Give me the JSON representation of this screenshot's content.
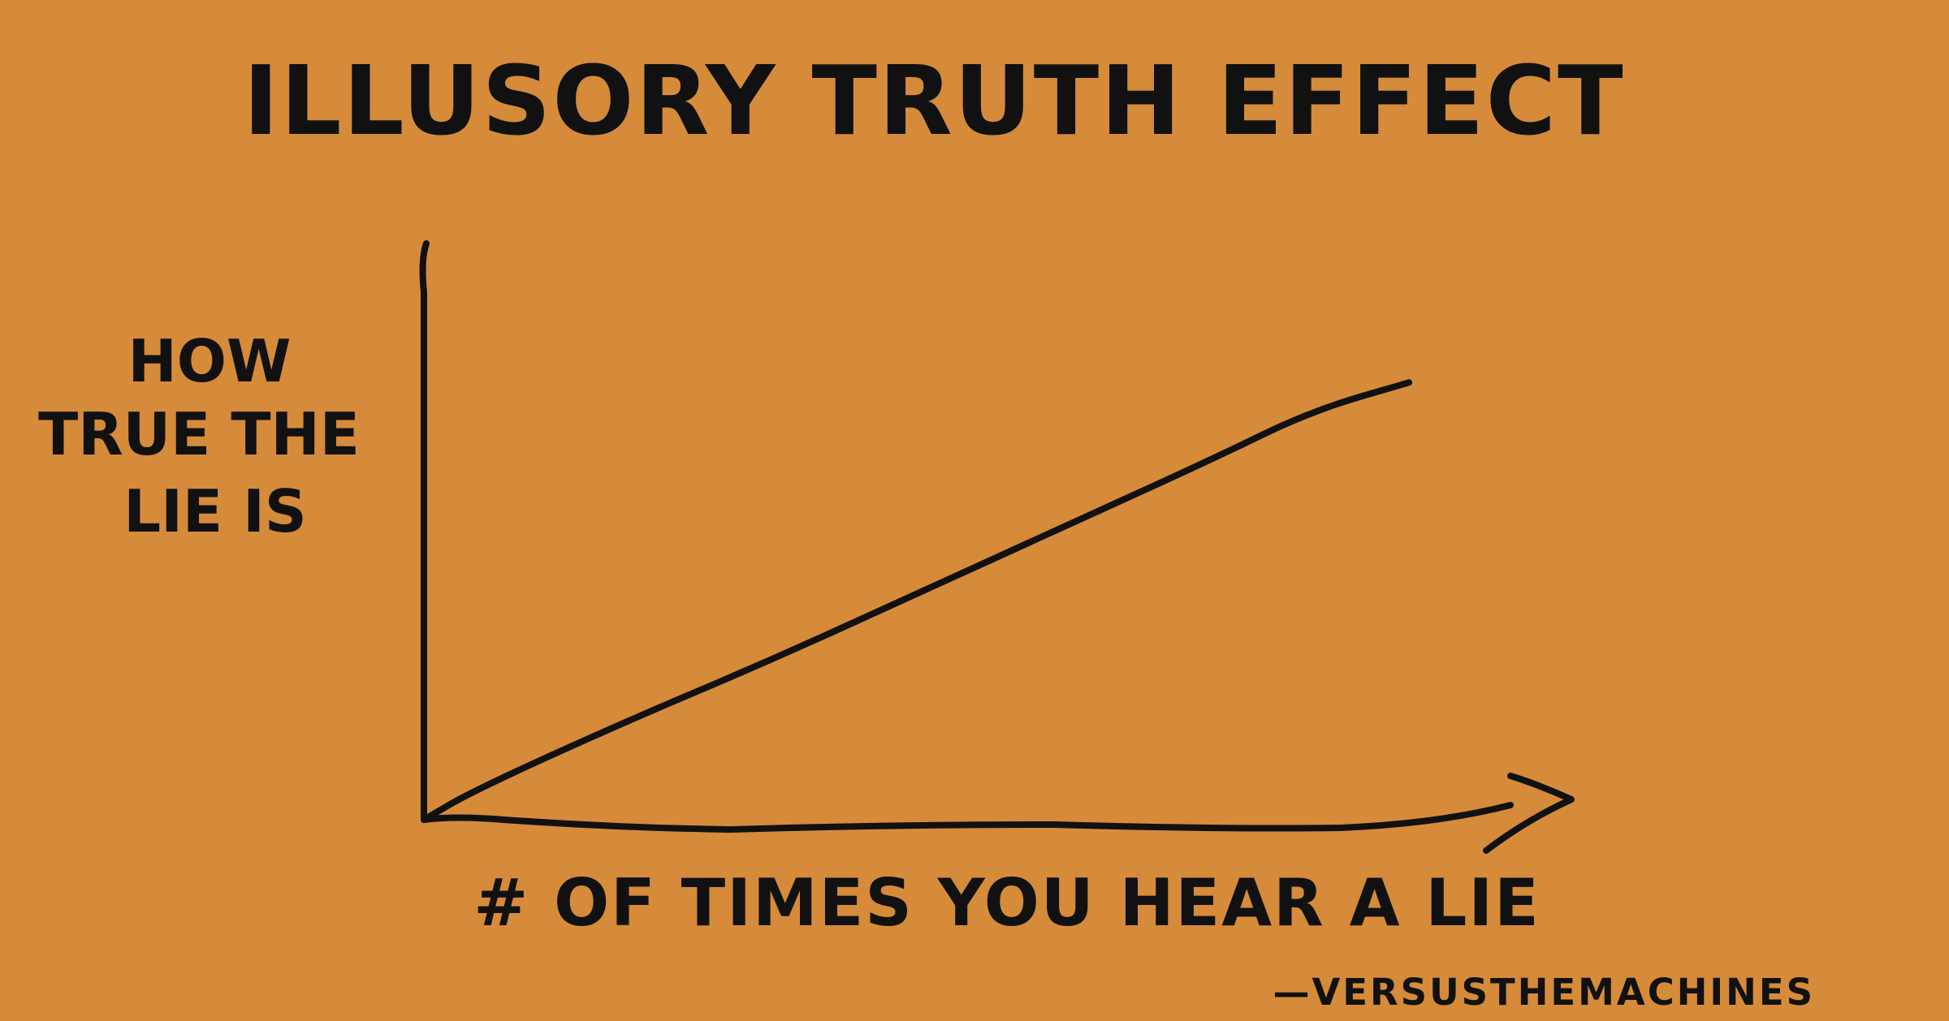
{
  "colors": {
    "background": "#d68b3a",
    "ink": "#111111"
  },
  "chart_data": {
    "type": "line",
    "title": "ILLUSORY TRUTH EFFECT",
    "ylabel_lines": [
      "HOW",
      "TRUE THE",
      "LIE IS"
    ],
    "xlabel": "# OF TIMES YOU HEAR A LIE",
    "signature": "—VERSUSTHEMACHINES",
    "grid": false,
    "legend": "none",
    "xlim": [
      0,
      1
    ],
    "ylim": [
      0,
      1
    ],
    "series": [
      {
        "x": [
          0,
          0.05,
          0.2,
          0.35,
          0.5,
          0.65,
          0.8,
          0.9,
          1
        ],
        "y": [
          0,
          0.06,
          0.2,
          0.33,
          0.47,
          0.61,
          0.75,
          0.85,
          0.91
        ]
      }
    ]
  }
}
